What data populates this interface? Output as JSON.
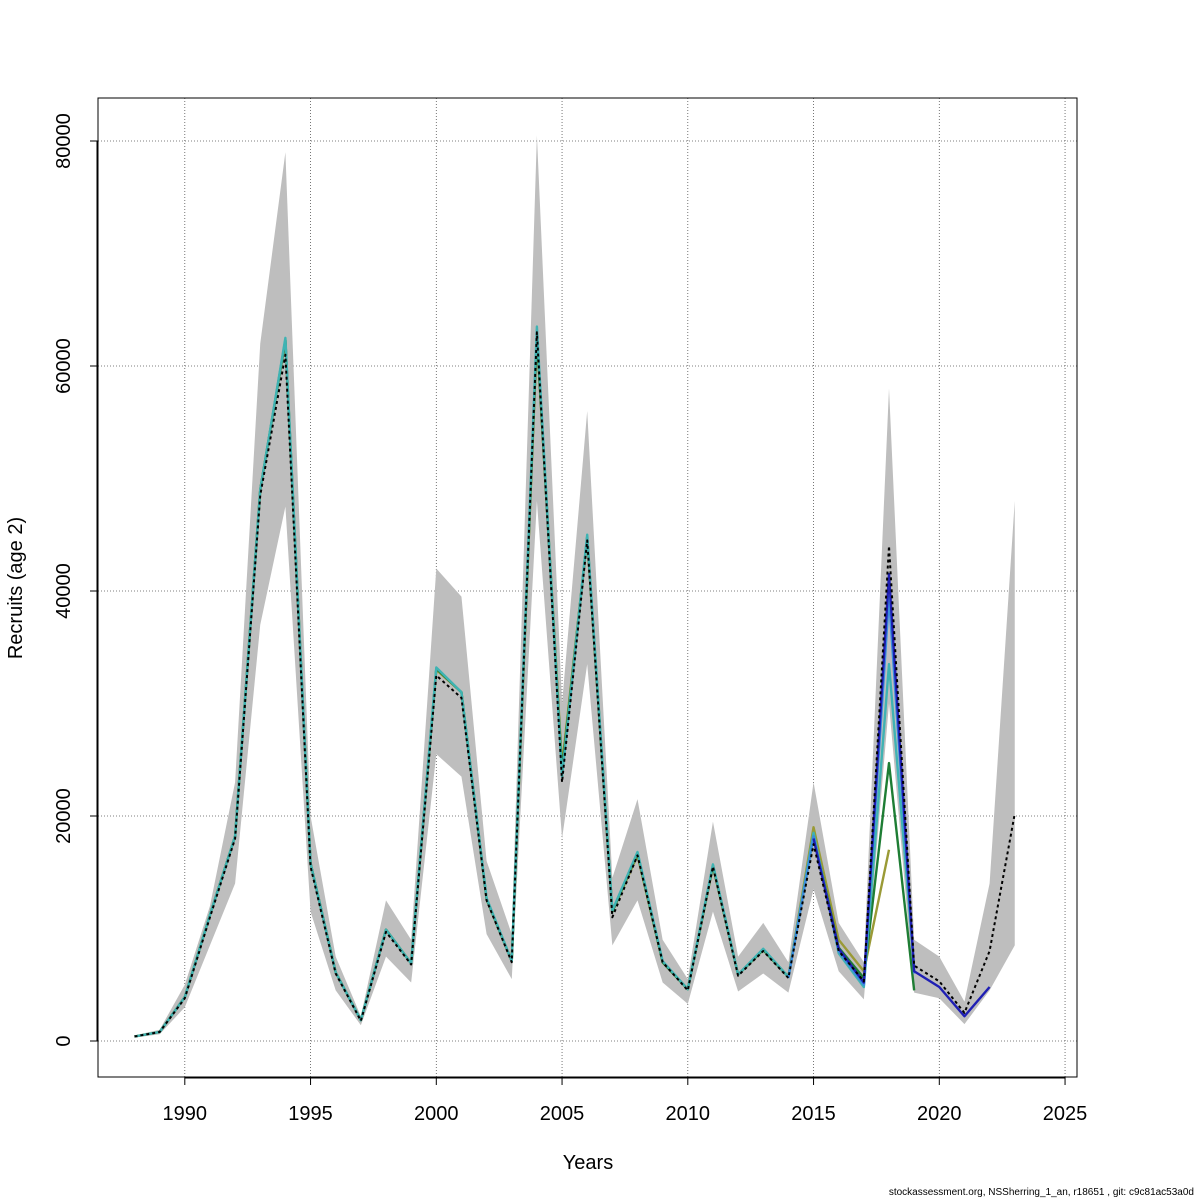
{
  "footer": "stockassessment.org, NSSherring_1_an, r18651 , git: c9c81ac53a0d",
  "chart_data": {
    "type": "line",
    "title": "",
    "xlabel": "Years",
    "ylabel": "Recruits (age 2)",
    "xlim": [
      1988,
      2025
    ],
    "ylim": [
      0,
      80000
    ],
    "xticks": [
      1990,
      1995,
      2000,
      2005,
      2010,
      2015,
      2020,
      2025
    ],
    "yticks": [
      0,
      20000,
      40000,
      60000,
      80000
    ],
    "grid": true,
    "legend": "none",
    "band": {
      "color": "#bebebe",
      "x": [
        1988,
        1989,
        1990,
        1991,
        1992,
        1993,
        1994,
        1995,
        1996,
        1997,
        1998,
        1999,
        2000,
        2001,
        2002,
        2003,
        2004,
        2005,
        2006,
        2007,
        2008,
        2009,
        2010,
        2011,
        2012,
        2013,
        2014,
        2015,
        2016,
        2017,
        2018,
        2019,
        2020,
        2021,
        2022,
        2023
      ],
      "upper": [
        500,
        1000,
        5000,
        12000,
        23000,
        62000,
        79000,
        20000,
        7500,
        2200,
        12500,
        9000,
        42000,
        39500,
        16000,
        9500,
        80500,
        30000,
        56000,
        14500,
        21500,
        9000,
        5500,
        19500,
        7500,
        10500,
        7000,
        23000,
        10500,
        7000,
        58000,
        9000,
        7500,
        3500,
        14000,
        48000
      ],
      "lower": [
        300,
        600,
        3000,
        8500,
        14000,
        37000,
        47500,
        11500,
        4500,
        1400,
        7500,
        5200,
        25500,
        23500,
        9500,
        5500,
        48000,
        18000,
        33500,
        8500,
        12500,
        5200,
        3300,
        11500,
        4400,
        6000,
        4300,
        13500,
        6200,
        3700,
        30000,
        4300,
        3800,
        1500,
        4500,
        8500
      ]
    },
    "series": [
      {
        "color": "#000000",
        "dashed": true,
        "x": [
          1988,
          1989,
          1990,
          1991,
          1992,
          1993,
          1994,
          1995,
          1996,
          1997,
          1998,
          1999,
          2000,
          2001,
          2002,
          2003,
          2004,
          2005,
          2006,
          2007,
          2008,
          2009,
          2010,
          2011,
          2012,
          2013,
          2014,
          2015,
          2016,
          2017,
          2018,
          2019,
          2020,
          2021,
          2022,
          2023
        ],
        "values": [
          400,
          800,
          3800,
          11000,
          18000,
          48500,
          61000,
          15500,
          6000,
          1800,
          9700,
          6800,
          32500,
          30500,
          12500,
          7000,
          63000,
          23000,
          44500,
          11000,
          16500,
          7000,
          4500,
          15500,
          5800,
          8000,
          5600,
          17500,
          8000,
          5300,
          44000,
          6700,
          5300,
          2500,
          8000,
          20200
        ]
      },
      {
        "color": "#1f1fb4",
        "x": [
          2015,
          2016,
          2017,
          2018,
          2019,
          2020,
          2021,
          2022
        ],
        "values": [
          18000,
          8200,
          5200,
          41500,
          6200,
          4800,
          2200,
          4800
        ]
      },
      {
        "color": "#3a8dde",
        "x": [
          2014,
          2015,
          2016,
          2017,
          2018,
          2019
        ],
        "values": [
          5600,
          18200,
          8000,
          5000,
          39500,
          6000
        ]
      },
      {
        "color": "#3fb3b3",
        "x": [
          1988,
          1989,
          1990,
          1991,
          1992,
          1993,
          1994,
          1995,
          1996,
          1997,
          1998,
          1999,
          2000,
          2001,
          2002,
          2003,
          2004,
          2005,
          2006,
          2007,
          2008,
          2009,
          2010,
          2011,
          2012,
          2013,
          2014,
          2015,
          2016,
          2017,
          2018,
          2019
        ],
        "values": [
          400,
          800,
          3900,
          11200,
          18200,
          49000,
          62500,
          15800,
          6100,
          1850,
          9900,
          6900,
          33200,
          31000,
          12700,
          7100,
          63500,
          23500,
          45000,
          11600,
          16800,
          7100,
          4600,
          15700,
          5900,
          8200,
          5700,
          18500,
          7800,
          4800,
          33500,
          6500
        ]
      },
      {
        "color": "#1e7d34",
        "x": [
          1988,
          1989,
          1990,
          1991,
          1992,
          1993,
          1994,
          1995,
          1996,
          1997,
          1998,
          1999,
          2000,
          2001,
          2002,
          2003,
          2004,
          2005,
          2006,
          2007,
          2008,
          2009,
          2010,
          2011,
          2012,
          2013,
          2014,
          2015,
          2016,
          2017,
          2018,
          2019
        ],
        "values": [
          400,
          800,
          3900,
          11200,
          18200,
          49000,
          62300,
          15800,
          6100,
          1850,
          9900,
          6900,
          33100,
          31000,
          12600,
          7100,
          62800,
          24000,
          44800,
          11500,
          16700,
          7000,
          4600,
          15600,
          5900,
          8100,
          5700,
          18300,
          8300,
          5600,
          24700,
          4500
        ]
      },
      {
        "color": "#9a9a36",
        "x": [
          1988,
          1989,
          1990,
          1991,
          1992,
          1993,
          1994,
          1995,
          1996,
          1997,
          1998,
          1999,
          2000,
          2001,
          2002,
          2003,
          2004,
          2005,
          2006,
          2007,
          2008,
          2009,
          2010,
          2011,
          2012,
          2013,
          2014,
          2015,
          2016,
          2017,
          2018
        ],
        "values": [
          400,
          800,
          3900,
          11200,
          18200,
          49000,
          62300,
          15800,
          6100,
          1850,
          9900,
          6900,
          33000,
          31000,
          12600,
          7100,
          62500,
          24500,
          44700,
          11500,
          16500,
          7000,
          4600,
          15500,
          5900,
          8100,
          5700,
          19000,
          9000,
          6200,
          17000
        ]
      }
    ]
  }
}
